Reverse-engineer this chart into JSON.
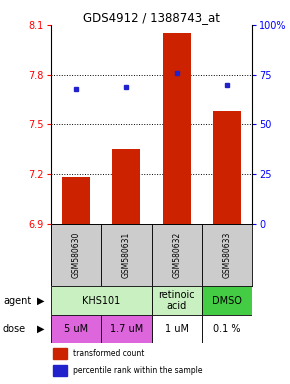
{
  "title": "GDS4912 / 1388743_at",
  "samples": [
    "GSM580630",
    "GSM580631",
    "GSM580632",
    "GSM580633"
  ],
  "bar_values": [
    7.18,
    7.35,
    8.05,
    7.58
  ],
  "bar_bottom": 6.9,
  "percentile_values": [
    68,
    69,
    76,
    70
  ],
  "ylim_left": [
    6.9,
    8.1
  ],
  "yticks_left": [
    6.9,
    7.2,
    7.5,
    7.8,
    8.1
  ],
  "ylim_right": [
    0,
    100
  ],
  "yticks_right": [
    0,
    25,
    50,
    75,
    100
  ],
  "ytick_labels_right": [
    "0",
    "25",
    "50",
    "75",
    "100%"
  ],
  "bar_color": "#cc2200",
  "dot_color": "#2222cc",
  "agent_data": [
    {
      "span": [
        0,
        2
      ],
      "text": "KHS101",
      "color": "#c8f0c0"
    },
    {
      "span": [
        2,
        3
      ],
      "text": "retinoic\nacid",
      "color": "#c8f0c0"
    },
    {
      "span": [
        3,
        4
      ],
      "text": "DMSO",
      "color": "#44cc44"
    }
  ],
  "dose_labels": [
    "5 uM",
    "1.7 uM",
    "1 uM",
    "0.1 %"
  ],
  "dose_colors": [
    "#ee66ee",
    "#ee66ee",
    "#ffffff",
    "#ffffff"
  ],
  "sample_bg": "#cccccc",
  "legend_bar_text": "transformed count",
  "legend_dot_text": "percentile rank within the sample"
}
